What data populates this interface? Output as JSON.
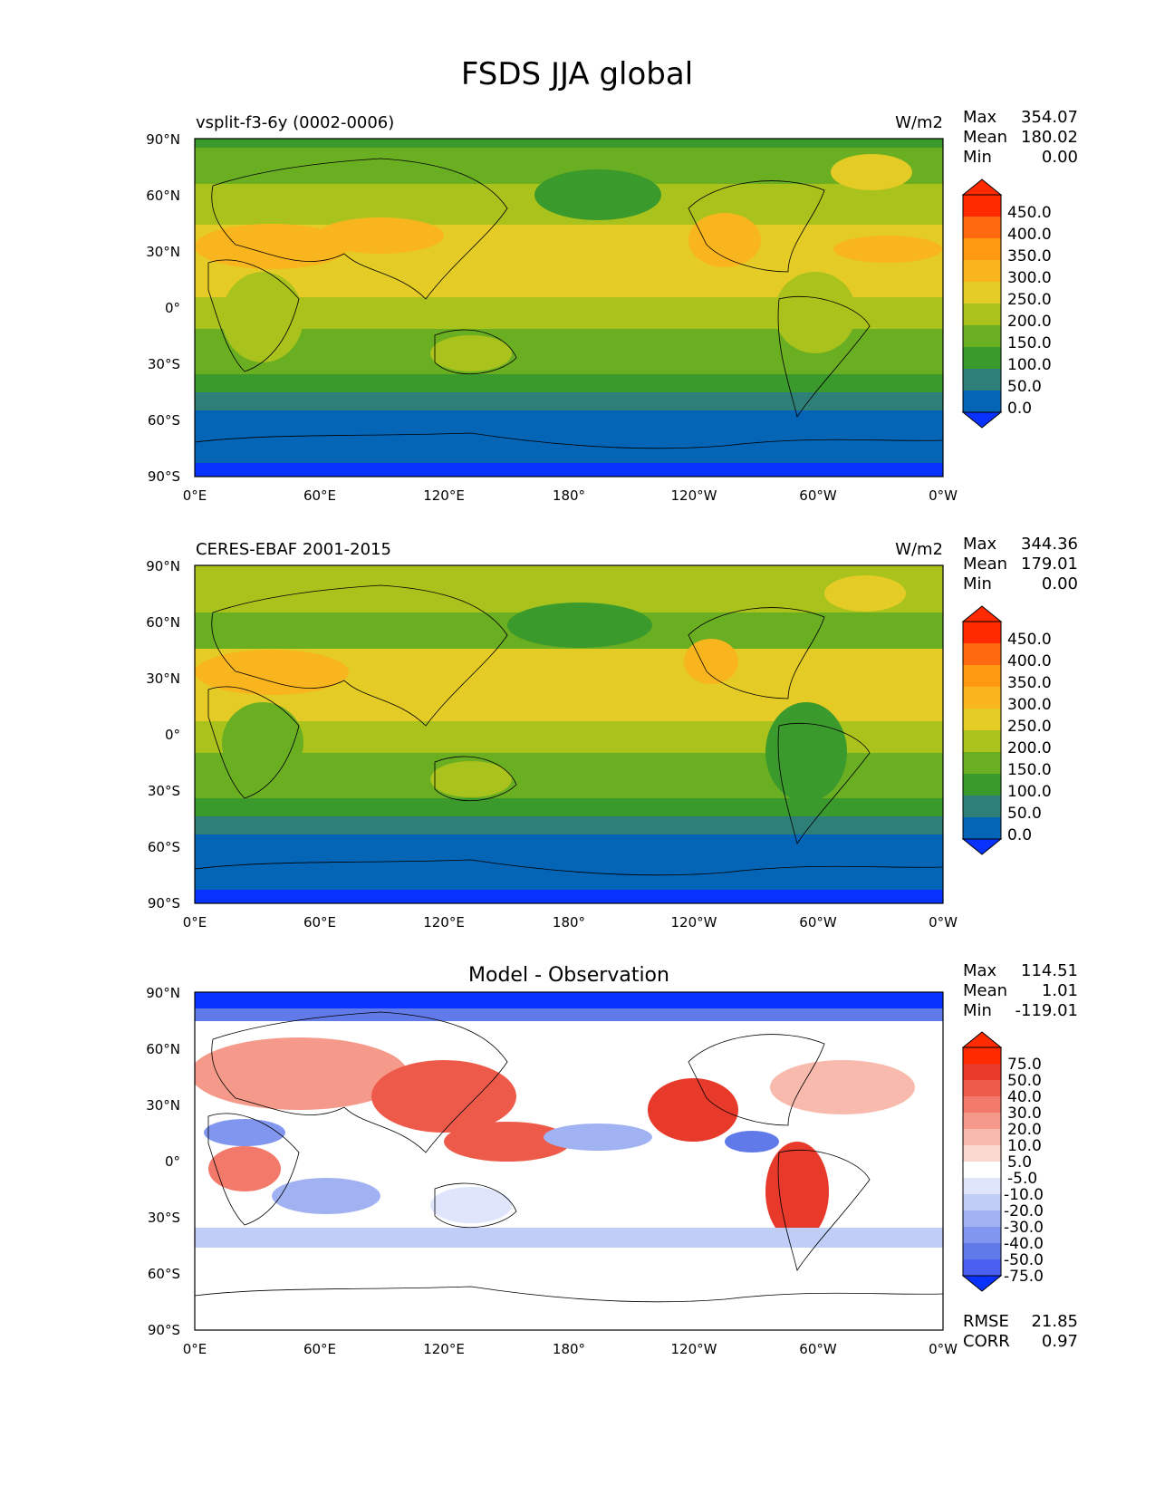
{
  "figure": {
    "title": "FSDS JJA global"
  },
  "axes": {
    "xticks": [
      "0°E",
      "60°E",
      "120°E",
      "180°",
      "120°W",
      "60°W",
      "0°W"
    ],
    "yticks": [
      "90°N",
      "60°N",
      "30°N",
      "0°",
      "30°S",
      "60°S",
      "90°S"
    ]
  },
  "panels": [
    {
      "name": "model",
      "left_title": "vsplit-f3-6y (0002-0006)",
      "center_title": "",
      "units": "W/m2",
      "stats": [
        {
          "label": "Max",
          "value": "354.07"
        },
        {
          "label": "Mean",
          "value": "180.02"
        },
        {
          "label": "Min",
          "value": "0.00"
        }
      ],
      "colorbar": {
        "labels": [
          "450.0",
          "400.0",
          "350.0",
          "300.0",
          "250.0",
          "200.0",
          "150.0",
          "100.0",
          "50.0",
          "0.0"
        ],
        "colors": [
          "#ff2a00",
          "#ff6a10",
          "#ff9a10",
          "#f9b51e",
          "#e4cb26",
          "#a9c21c",
          "#6aae22",
          "#3a9a2b",
          "#2e7f77",
          "#0464b6",
          "#0a32ff"
        ]
      }
    },
    {
      "name": "observation",
      "left_title": "CERES-EBAF 2001-2015",
      "center_title": "",
      "units": "W/m2",
      "stats": [
        {
          "label": "Max",
          "value": "344.36"
        },
        {
          "label": "Mean",
          "value": "179.01"
        },
        {
          "label": "Min",
          "value": "0.00"
        }
      ],
      "colorbar": {
        "labels": [
          "450.0",
          "400.0",
          "350.0",
          "300.0",
          "250.0",
          "200.0",
          "150.0",
          "100.0",
          "50.0",
          "0.0"
        ],
        "colors": [
          "#ff2a00",
          "#ff6a10",
          "#ff9a10",
          "#f9b51e",
          "#e4cb26",
          "#a9c21c",
          "#6aae22",
          "#3a9a2b",
          "#2e7f77",
          "#0464b6",
          "#0a32ff"
        ]
      }
    },
    {
      "name": "difference",
      "left_title": "",
      "center_title": "Model - Observation",
      "units": "",
      "stats": [
        {
          "label": "Max",
          "value": "114.51"
        },
        {
          "label": "Mean",
          "value": "1.01"
        },
        {
          "label": "Min",
          "value": "-119.01"
        }
      ],
      "extra_stats": [
        {
          "label": "RMSE",
          "value": "21.85"
        },
        {
          "label": "CORR",
          "value": "0.97"
        }
      ],
      "colorbar": {
        "labels": [
          "75.0",
          "50.0",
          "40.0",
          "30.0",
          "20.0",
          "10.0",
          "5.0",
          "-5.0",
          "-10.0",
          "-20.0",
          "-30.0",
          "-40.0",
          "-50.0",
          "-75.0"
        ],
        "colors": [
          "#ff2a00",
          "#e83a2a",
          "#ee5a4a",
          "#f37a6a",
          "#f59a8a",
          "#f8baad",
          "#fbd8ce",
          "#ffffff",
          "#dfe5fb",
          "#c0cdf7",
          "#a1b2f2",
          "#8196ee",
          "#617ae9",
          "#4a60f0",
          "#0a32ff"
        ]
      }
    }
  ]
}
